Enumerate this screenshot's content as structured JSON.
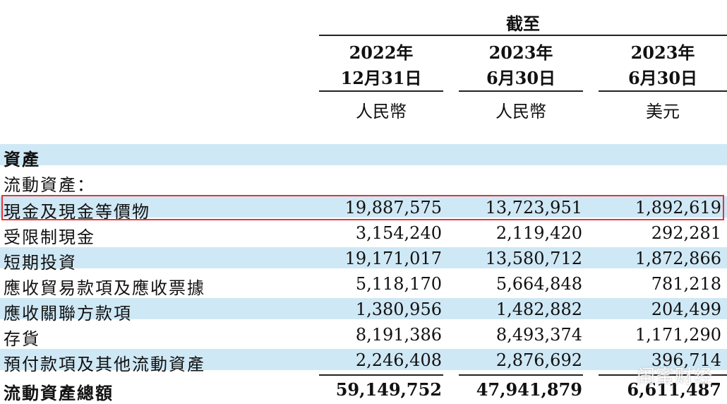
{
  "header": {
    "as_of": "截至",
    "columns": [
      {
        "year": "2022年",
        "date": "12月31日",
        "currency": "人民幣"
      },
      {
        "year": "2023年",
        "date": "6月30日",
        "currency": "人民幣"
      },
      {
        "year": "2023年",
        "date": "6月30日",
        "currency": "美元"
      }
    ]
  },
  "section_title": "資產",
  "subsection_title": "流動資產：",
  "rows": [
    {
      "label": "現金及現金等價物",
      "values": [
        "19,887,575",
        "13,723,951",
        "1,892,619"
      ]
    },
    {
      "label": "受限制現金",
      "values": [
        "3,154,240",
        "2,119,420",
        "292,281"
      ]
    },
    {
      "label": "短期投資",
      "values": [
        "19,171,017",
        "13,580,712",
        "1,872,866"
      ]
    },
    {
      "label": "應收貿易款項及應收票據",
      "values": [
        "5,118,170",
        "5,664,848",
        "781,218"
      ]
    },
    {
      "label": "應收關聯方款項",
      "values": [
        "1,380,956",
        "1,482,882",
        "204,499"
      ]
    },
    {
      "label": "存貨",
      "values": [
        "8,191,386",
        "8,493,374",
        "1,171,290"
      ]
    },
    {
      "label": "預付款項及其他流動資產",
      "values": [
        "2,246,408",
        "2,876,692",
        "396,714"
      ]
    }
  ],
  "total": {
    "label": "流動資產總額",
    "values": [
      "59,149,752",
      "47,941,879",
      "6,611,487"
    ]
  },
  "watermark": "闺蜜财经",
  "colors": {
    "band": "#cfe8f5",
    "highlight_border": "#e0363d"
  }
}
